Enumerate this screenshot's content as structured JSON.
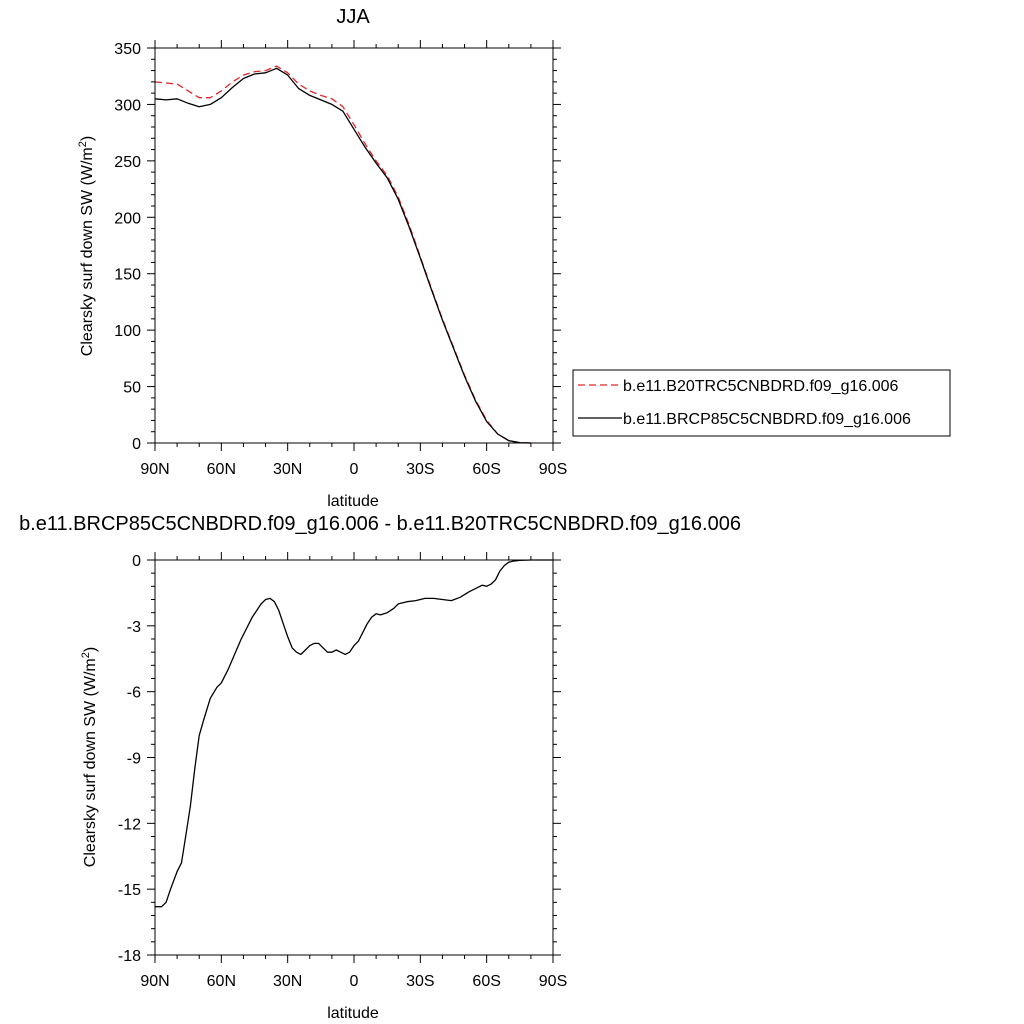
{
  "chart_data": [
    {
      "type": "line",
      "title": "JJA",
      "xlabel": "latitude",
      "ylabel": "Clearsky surf down SW (W/m",
      "ylabel_sup": "2",
      "ylabel_close": ")",
      "xlim": [
        90,
        -90
      ],
      "ylim": [
        0,
        350
      ],
      "xticks": [
        {
          "value": 90,
          "label": "90N"
        },
        {
          "value": 60,
          "label": "60N"
        },
        {
          "value": 30,
          "label": "30N"
        },
        {
          "value": 0,
          "label": "0"
        },
        {
          "value": -30,
          "label": "30S"
        },
        {
          "value": -60,
          "label": "60S"
        },
        {
          "value": -90,
          "label": "90S"
        }
      ],
      "yticks": [
        {
          "value": 0,
          "label": "0"
        },
        {
          "value": 50,
          "label": "50"
        },
        {
          "value": 100,
          "label": "100"
        },
        {
          "value": 150,
          "label": "150"
        },
        {
          "value": 200,
          "label": "200"
        },
        {
          "value": 250,
          "label": "250"
        },
        {
          "value": 300,
          "label": "300"
        },
        {
          "value": 350,
          "label": "350"
        }
      ],
      "legend": "right",
      "series": [
        {
          "name": "b.e11.B20TRC5CNBDRD.f09_g16.006",
          "color": "#e3262b",
          "dash": "dashed",
          "x": [
            90,
            80,
            75,
            70,
            65,
            60,
            55,
            50,
            45,
            40,
            35,
            30,
            25,
            20,
            15,
            10,
            5,
            0,
            -5,
            -10,
            -15,
            -20,
            -25,
            -30,
            -35,
            -40,
            -45,
            -50,
            -55,
            -60,
            -65,
            -70,
            -75,
            -80
          ],
          "y": [
            320,
            318,
            312,
            306,
            306,
            312,
            320,
            326,
            329,
            330,
            334,
            328,
            318,
            312,
            308,
            305,
            298,
            282,
            265,
            250,
            237,
            218,
            193,
            165,
            137,
            110,
            85,
            60,
            38,
            20,
            8,
            2,
            0.3,
            0
          ]
        },
        {
          "name": "b.e11.BRCP85C5CNBDRD.f09_g16.006",
          "color": "#000000",
          "dash": "solid",
          "x": [
            90,
            85,
            80,
            75,
            70,
            65,
            60,
            55,
            50,
            45,
            40,
            35,
            30,
            25,
            20,
            15,
            10,
            5,
            0,
            -5,
            -10,
            -15,
            -20,
            -25,
            -30,
            -35,
            -40,
            -45,
            -50,
            -55,
            -60,
            -65,
            -70,
            -75,
            -80
          ],
          "y": [
            305,
            304,
            305,
            301,
            298,
            300,
            306,
            315,
            323,
            327,
            328,
            332,
            326,
            314,
            308,
            304,
            300,
            294,
            278,
            262,
            248,
            235,
            216,
            191,
            164,
            136,
            109,
            84,
            59,
            37,
            19,
            8,
            2,
            0.3,
            0
          ]
        }
      ]
    },
    {
      "type": "line",
      "title": "b.e11.BRCP85C5CNBDRD.f09_g16.006 - b.e11.B20TRC5CNBDRD.f09_g16.006",
      "xlabel": "latitude",
      "ylabel": "Clearsky surf down SW (W/m",
      "ylabel_sup": "2",
      "ylabel_close": ")",
      "xlim": [
        90,
        -90
      ],
      "ylim": [
        -18,
        0
      ],
      "xticks": [
        {
          "value": 90,
          "label": "90N"
        },
        {
          "value": 60,
          "label": "60N"
        },
        {
          "value": 30,
          "label": "30N"
        },
        {
          "value": 0,
          "label": "0"
        },
        {
          "value": -30,
          "label": "30S"
        },
        {
          "value": -60,
          "label": "60S"
        },
        {
          "value": -90,
          "label": "90S"
        }
      ],
      "yticks": [
        {
          "value": 0,
          "label": "0"
        },
        {
          "value": -3,
          "label": "-3"
        },
        {
          "value": -6,
          "label": "-6"
        },
        {
          "value": -9,
          "label": "-9"
        },
        {
          "value": -12,
          "label": "-12"
        },
        {
          "value": -15,
          "label": "-15"
        },
        {
          "value": -18,
          "label": "-18"
        }
      ],
      "series": [
        {
          "color": "#000000",
          "dash": "solid",
          "x": [
            90,
            87,
            85,
            83,
            80,
            78,
            76,
            74,
            72,
            70,
            68,
            65,
            62,
            60,
            57,
            54,
            51,
            48,
            46,
            44,
            42,
            40,
            38,
            36,
            34,
            32,
            30,
            28,
            26,
            24,
            22,
            20,
            18,
            16,
            14,
            12,
            10,
            8,
            6,
            4,
            2,
            0,
            -2,
            -4,
            -6,
            -8,
            -10,
            -12,
            -15,
            -18,
            -20,
            -24,
            -28,
            -32,
            -36,
            -40,
            -44,
            -48,
            -52,
            -56,
            -58,
            -60,
            -62,
            -64,
            -66,
            -68,
            -70,
            -72,
            -75,
            -80,
            -85,
            -90
          ],
          "y": [
            -15.8,
            -15.8,
            -15.6,
            -15.0,
            -14.2,
            -13.8,
            -12.5,
            -11.2,
            -9.5,
            -8.0,
            -7.3,
            -6.3,
            -5.8,
            -5.6,
            -5.0,
            -4.3,
            -3.6,
            -3.0,
            -2.6,
            -2.3,
            -2.0,
            -1.8,
            -1.75,
            -1.9,
            -2.3,
            -2.9,
            -3.5,
            -4.0,
            -4.2,
            -4.3,
            -4.1,
            -3.9,
            -3.8,
            -3.8,
            -4.0,
            -4.2,
            -4.2,
            -4.1,
            -4.2,
            -4.3,
            -4.2,
            -3.9,
            -3.7,
            -3.3,
            -2.9,
            -2.6,
            -2.45,
            -2.5,
            -2.4,
            -2.2,
            -2.0,
            -1.9,
            -1.85,
            -1.75,
            -1.75,
            -1.8,
            -1.85,
            -1.7,
            -1.45,
            -1.25,
            -1.15,
            -1.2,
            -1.1,
            -0.9,
            -0.5,
            -0.25,
            -0.1,
            -0.05,
            -0.02,
            0,
            0,
            0
          ]
        }
      ]
    }
  ]
}
